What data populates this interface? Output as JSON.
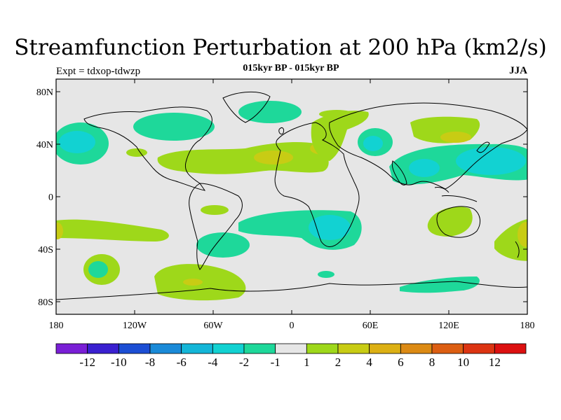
{
  "title": "Streamfunction Perturbation at 200 hPa (km2/s)",
  "subtitle": "015kyr BP - 015kyr BP",
  "left_label": "Expt = tdxop-tdwzp",
  "right_label": "JJA",
  "map": {
    "projection": "cylindrical-equidistant",
    "background_color": "#e6e6e6",
    "lat_ticks": [
      "80N",
      "40N",
      "0",
      "40S",
      "80S"
    ],
    "lon_ticks": [
      "180",
      "120W",
      "60W",
      "0",
      "60E",
      "120E",
      "180"
    ]
  },
  "colorbar": {
    "colors": [
      "#7a1fd6",
      "#3a20d0",
      "#1c4ed4",
      "#1a8ad8",
      "#14b6d8",
      "#12d2d2",
      "#1ed89a",
      "#e6e6e6",
      "#9ed81a",
      "#c8cc14",
      "#dcb014",
      "#dc8a14",
      "#dc5e12",
      "#dc3412",
      "#dc1010"
    ],
    "labels": [
      "-12",
      "-10",
      "-8",
      "-6",
      "-4",
      "-2",
      "-1",
      "1",
      "2",
      "4",
      "6",
      "8",
      "10",
      "12"
    ]
  }
}
